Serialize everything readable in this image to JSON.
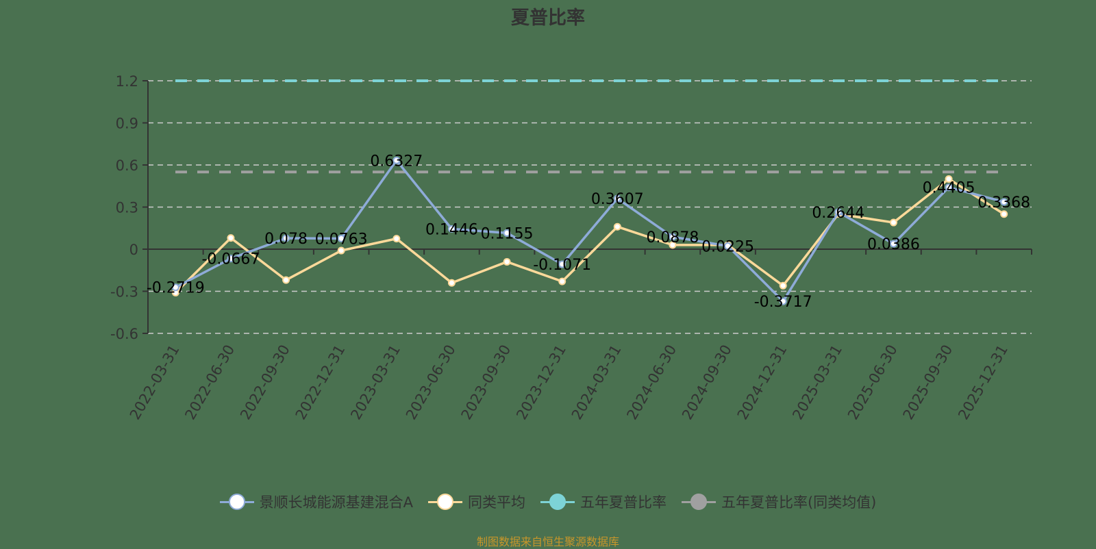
{
  "title": "夏普比率",
  "source_note": "制图数据来自恒生聚源数据库",
  "colors": {
    "background": "#4a7150",
    "fund": "#8eabd8",
    "peer_avg": "#fdd99a",
    "five_year": "#7dd3d6",
    "five_year_peer": "#a0a0a0",
    "axis": "#333333",
    "grid": "#cccccc",
    "source": "#c8962a"
  },
  "legend": [
    {
      "label": "景顺长城能源基建混合A",
      "color": "#8eabd8",
      "fill": "#ffffff"
    },
    {
      "label": "同类平均",
      "color": "#fdd99a",
      "fill": "#ffffff"
    },
    {
      "label": "五年夏普比率",
      "color": "#7dd3d6",
      "fill": "#7dd3d6"
    },
    {
      "label": "五年夏普比率(同类均值)",
      "color": "#a0a0a0",
      "fill": "#a0a0a0"
    }
  ],
  "chart_data": {
    "type": "line",
    "title": "夏普比率",
    "xlabel": "",
    "ylabel": "",
    "ylim": [
      -0.6,
      1.2
    ],
    "yticks": [
      1.2,
      0.9,
      0.6,
      0.3,
      0,
      -0.3,
      -0.6
    ],
    "ytick_labels": [
      "1.2",
      "0.9",
      "0.6",
      "0.3",
      "0",
      "-0.3",
      "-0.6"
    ],
    "grid": true,
    "legend_position": "bottom",
    "categories": [
      "2022-03-31",
      "2022-06-30",
      "2022-09-30",
      "2022-12-31",
      "2023-03-31",
      "2023-06-30",
      "2023-09-30",
      "2023-12-31",
      "2024-03-31",
      "2024-06-30",
      "2024-09-30",
      "2024-12-31",
      "2025-03-31",
      "2025-06-30",
      "2025-09-30",
      "2025-12-31"
    ],
    "series": [
      {
        "name": "景顺长城能源基建混合A",
        "values": [
          -0.2719,
          -0.0667,
          0.078,
          0.0763,
          0.6327,
          0.1446,
          0.1155,
          -0.1071,
          0.3607,
          0.0878,
          0.0225,
          -0.3717,
          0.2644,
          0.0386,
          0.4405,
          0.3368
        ],
        "labels": [
          "-0.2719",
          "-0.0667",
          "0.078",
          "0.0763",
          "0.6327",
          "0.1446",
          "0.1155",
          "-0.1071",
          "0.3607",
          "0.0878",
          "0.0225",
          "-0.3717",
          "0.2644",
          "0.0386",
          "0.4405",
          "0.3368"
        ]
      },
      {
        "name": "同类平均",
        "values": [
          -0.31,
          0.08,
          -0.22,
          -0.01,
          0.075,
          -0.24,
          -0.09,
          -0.23,
          0.16,
          0.03,
          0.03,
          -0.26,
          0.25,
          0.19,
          0.5,
          0.25
        ]
      },
      {
        "name": "五年夏普比率",
        "type": "hline",
        "value": 1.2
      },
      {
        "name": "五年夏普比率(同类均值)",
        "type": "hline",
        "value": 0.55
      }
    ]
  }
}
